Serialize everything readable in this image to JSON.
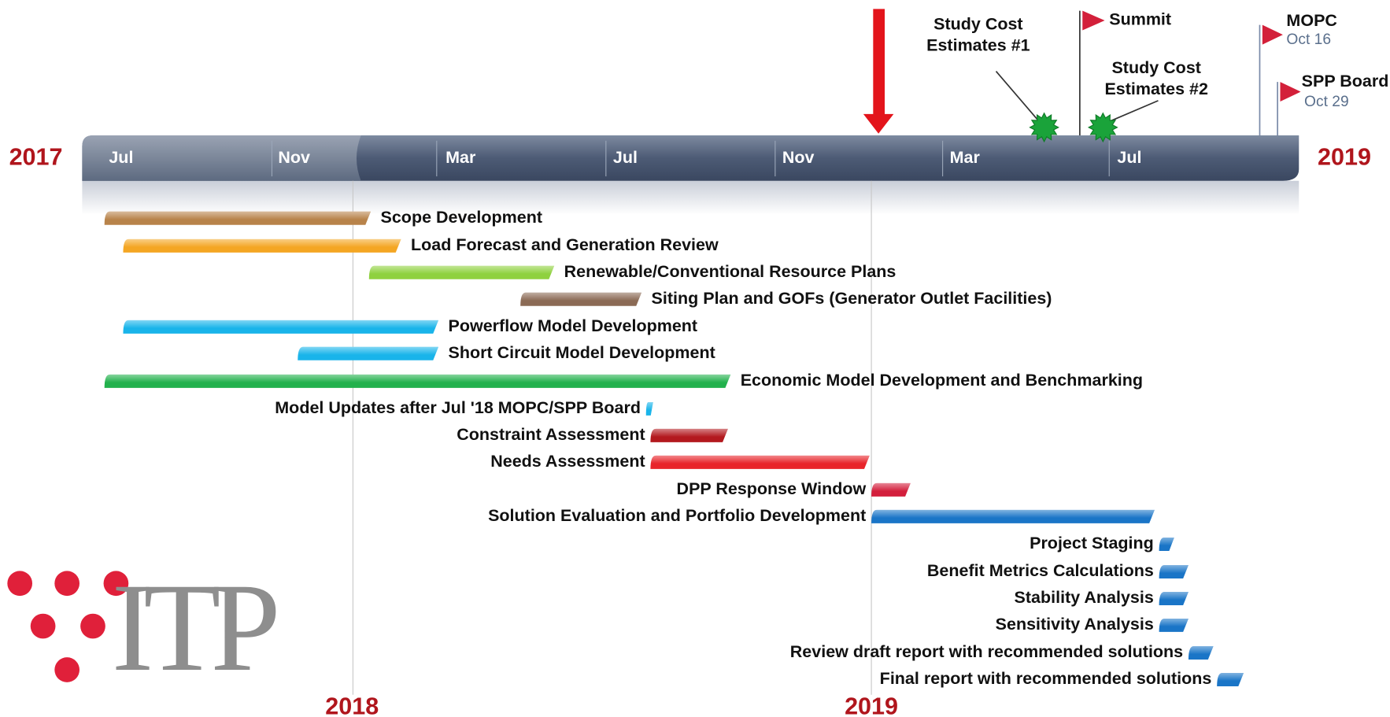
{
  "years": {
    "start": "2017",
    "end": "2019",
    "marks": [
      "2018",
      "2019"
    ]
  },
  "months": [
    "Jul",
    "Nov",
    "Mar",
    "Jul",
    "Nov",
    "Mar",
    "Jul"
  ],
  "milestones": {
    "cost1": [
      "Study Cost",
      "Estimates #1"
    ],
    "cost2": [
      "Study Cost",
      "Estimates #2"
    ],
    "summit": "Summit",
    "mopc": {
      "label": "MOPC",
      "date": "Oct 16"
    },
    "board": {
      "label": "SPP Board",
      "date": "Oct 29"
    }
  },
  "tasks": [
    "Scope Development",
    "Load Forecast and Generation Review",
    "Renewable/Conventional Resource Plans",
    "Siting Plan and GOFs (Generator Outlet Facilities)",
    "Powerflow Model Development",
    "Short Circuit Model Development",
    "Economic Model Development and Benchmarking",
    "Model Updates after Jul '18 MOPC/SPP Board",
    "Constraint Assessment",
    "Needs Assessment",
    "DPP Response Window",
    "Solution Evaluation and Portfolio Development",
    "Project Staging",
    "Benefit Metrics Calculations",
    "Stability Analysis",
    "Sensitivity Analysis",
    "Review draft report with recommended solutions",
    "Final report with recommended solutions"
  ],
  "logo": "ITP"
}
